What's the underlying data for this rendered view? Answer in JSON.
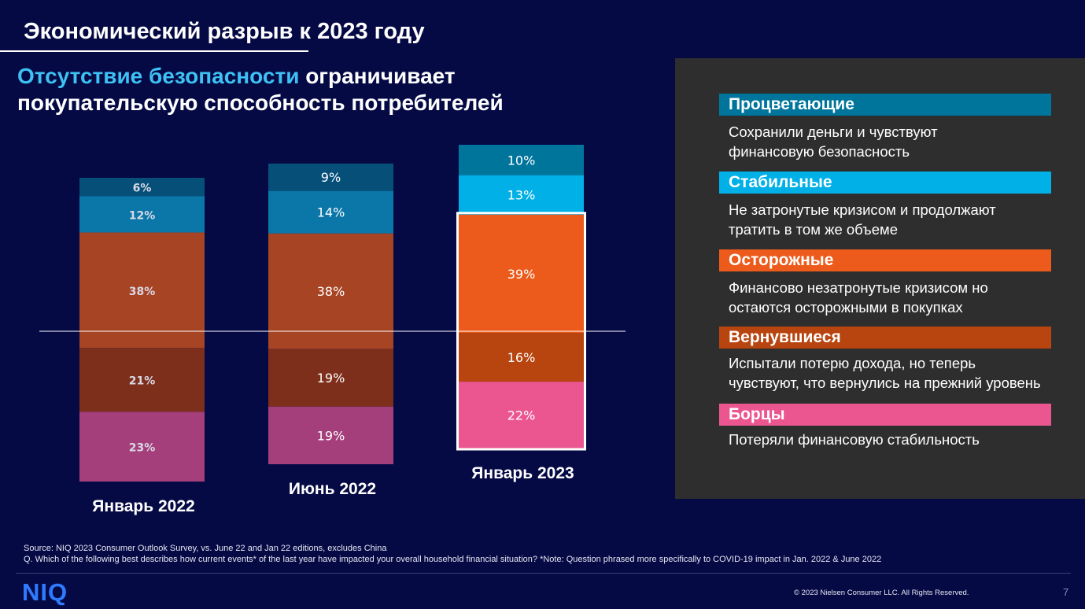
{
  "title": "Экономический разрыв к 2023 году",
  "headline": {
    "accent": "Отсутствие безопасности",
    "rest": " ограничивает",
    "line2": "покупательскую способность потребителей"
  },
  "chart_data": {
    "type": "bar",
    "stacked": true,
    "unit": "%",
    "categories": [
      "Январь 2022",
      "Июнь 2022",
      "Январь 2023"
    ],
    "series": [
      {
        "name": "Борцы",
        "values": [
          23,
          19,
          22
        ]
      },
      {
        "name": "Вернувшиеся",
        "values": [
          21,
          19,
          16
        ]
      },
      {
        "name": "Осторожные",
        "values": [
          38,
          38,
          39
        ]
      },
      {
        "name": "Стабильные",
        "values": [
          12,
          14,
          13
        ]
      },
      {
        "name": "Процветающие",
        "values": [
          6,
          9,
          10
        ]
      }
    ],
    "labels": [
      [
        "23%",
        "21%",
        "38%",
        "12%",
        "6%"
      ],
      [
        "19%",
        "19%",
        "38%",
        "14%",
        "9%"
      ],
      [
        "22%",
        "16%",
        "39%",
        "13%",
        "10%"
      ]
    ],
    "colors": [
      [
        "#a43f7b",
        "#7e2f1c",
        "#a64424",
        "#0b76a8",
        "#054f79"
      ],
      [
        "#a43f7b",
        "#7e2f1c",
        "#a64424",
        "#0b76a8",
        "#054f79"
      ],
      [
        "#ec5690",
        "#b8440f",
        "#ec5b1b",
        "#00b0e6",
        "#00759c"
      ]
    ],
    "highlight": {
      "category": "Январь 2023",
      "series": [
        "Осторожные",
        "Вернувшиеся",
        "Борцы"
      ]
    },
    "reference_line": "insecurity threshold"
  },
  "legend_panel": {
    "segments": [
      {
        "name": "Процветающие",
        "color": "#00759c",
        "desc1": "Сохранили деньги и чувствуют",
        "desc2": "финансовую безопасность"
      },
      {
        "name": "Стабильные",
        "color": "#00b0e6",
        "desc1": "Не затронутые кризисом и продолжают",
        "desc2": "тратить в том же объеме"
      },
      {
        "name": "Осторожные",
        "color": "#ec5b1b",
        "desc1": "Финансово незатронутые кризисом но",
        "desc2": "остаются осторожными в покупках"
      },
      {
        "name": "Вернувшиеся",
        "color": "#b8440f",
        "desc1": "Испытали потерю дохода, но теперь",
        "desc2": "чувствуют, что вернулись на прежний уровень"
      },
      {
        "name": "Борцы",
        "color": "#ec5690",
        "desc1": "Потеряли финансовую стабильность",
        "desc2": ""
      }
    ]
  },
  "footer": {
    "source": "Source: NIQ 2023 Consumer Outlook Survey, vs. June 22 and Jan 22 editions, excludes China",
    "question": "Q. Which of the following best describes how current events* of the last year have impacted your overall household financial situation? *Note: Question phrased more specifically to COVID-19 impact in Jan. 2022 & June 2022",
    "copyright": "© 2023 Nielsen Consumer LLC. All Rights Reserved.",
    "page": "7",
    "logo": "NIQ"
  }
}
